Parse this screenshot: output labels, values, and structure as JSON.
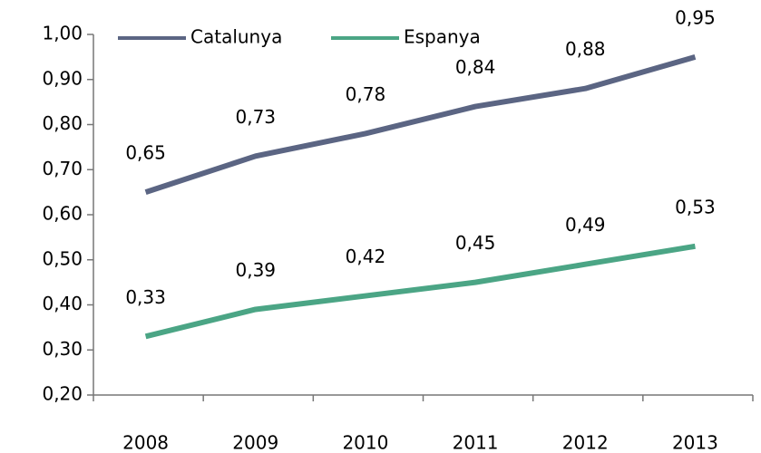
{
  "chart_data": {
    "type": "line",
    "categories": [
      "2008",
      "2009",
      "2010",
      "2011",
      "2012",
      "2013"
    ],
    "series": [
      {
        "name": "Catalunya",
        "color": "#5b6583",
        "values": [
          0.65,
          0.73,
          0.78,
          0.84,
          0.88,
          0.95
        ],
        "value_labels": [
          "0,65",
          "0,73",
          "0,78",
          "0,84",
          "0,88",
          "0,95"
        ]
      },
      {
        "name": "Espanya",
        "color": "#4ba585",
        "values": [
          0.33,
          0.39,
          0.42,
          0.45,
          0.49,
          0.53
        ],
        "value_labels": [
          "0,33",
          "0,39",
          "0,42",
          "0,45",
          "0,49",
          "0,53"
        ]
      }
    ],
    "ylim": [
      0.2,
      1.0
    ],
    "yticks": [
      {
        "value": 0.2,
        "label": "0,20"
      },
      {
        "value": 0.3,
        "label": "0,30"
      },
      {
        "value": 0.4,
        "label": "0,40"
      },
      {
        "value": 0.5,
        "label": "0,50"
      },
      {
        "value": 0.6,
        "label": "0,60"
      },
      {
        "value": 0.7,
        "label": "0,70"
      },
      {
        "value": 0.8,
        "label": "0,80"
      },
      {
        "value": 0.9,
        "label": "0,90"
      },
      {
        "value": 1.0,
        "label": "1,00"
      }
    ],
    "grid": false,
    "legend": "top-left"
  }
}
